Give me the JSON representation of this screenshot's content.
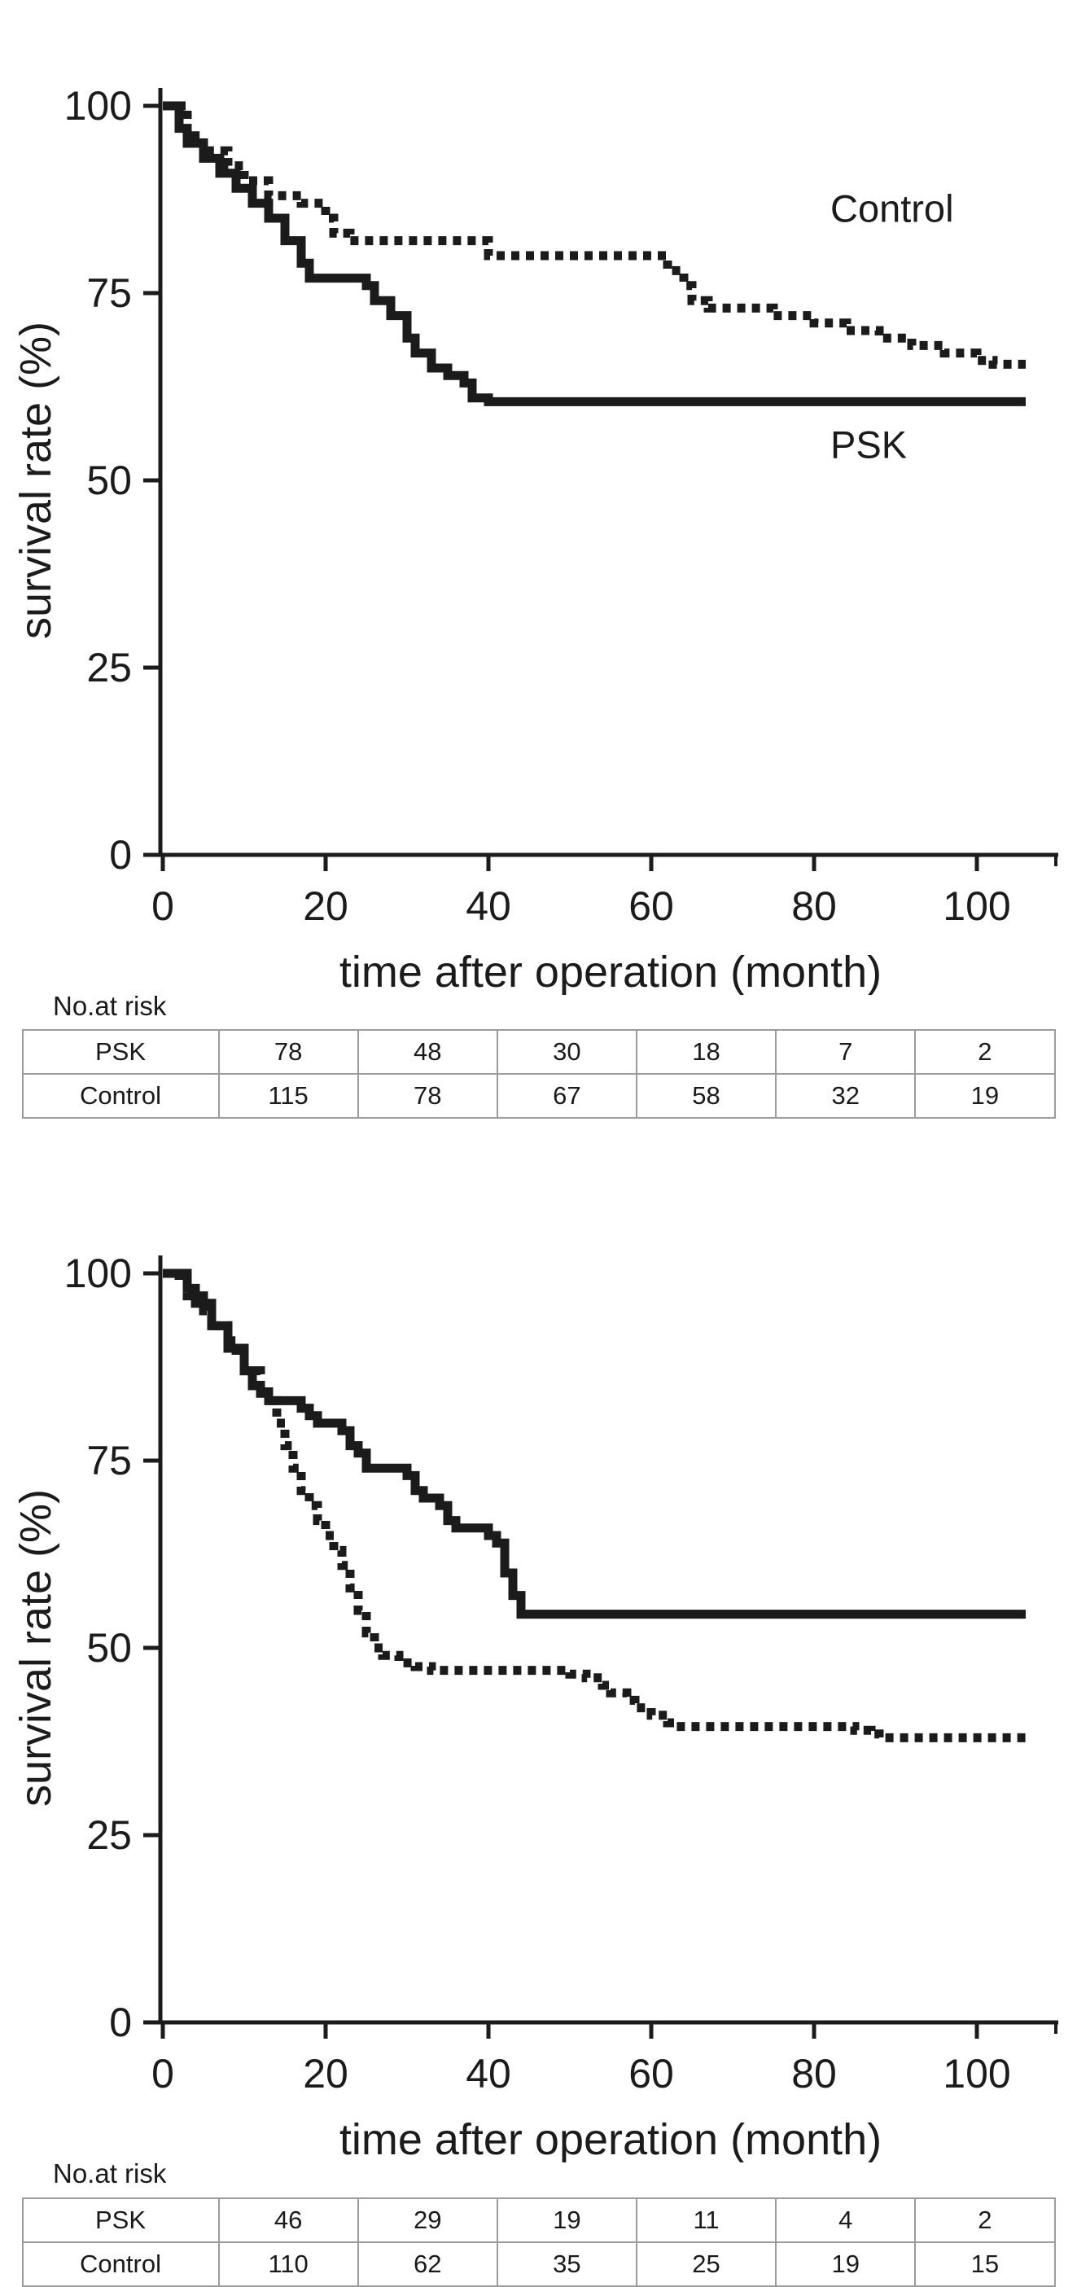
{
  "page": {
    "background": "#ffffff",
    "ink_color": "#1b1b1b",
    "table_border_color": "#9c9c9c"
  },
  "chart_data": [
    {
      "type": "line",
      "chart_kind": "kaplan-meier-survival-step",
      "title": "",
      "xlabel": "time after operation (month)",
      "ylabel": "survival rate (%)",
      "xlim": [
        0,
        106
      ],
      "ylim": [
        0,
        100
      ],
      "x_ticks": [
        0,
        20,
        40,
        60,
        80,
        100
      ],
      "y_ticks": [
        0,
        25,
        50,
        75,
        100
      ],
      "grid": false,
      "legend_position": "inline-labels",
      "series": [
        {
          "name": "Control",
          "line_style": "dashed",
          "label": "Control",
          "label_x": 82,
          "label_y": 84.5,
          "points": [
            [
              0,
              100
            ],
            [
              3,
              96
            ],
            [
              5,
              94
            ],
            [
              8,
              92
            ],
            [
              10,
              90
            ],
            [
              13,
              88
            ],
            [
              17,
              87
            ],
            [
              20,
              85
            ],
            [
              21,
              83
            ],
            [
              23,
              82
            ],
            [
              40,
              80
            ],
            [
              62,
              78
            ],
            [
              64,
              76
            ],
            [
              65,
              74
            ],
            [
              67,
              73
            ],
            [
              75,
              72
            ],
            [
              80,
              71
            ],
            [
              84,
              70
            ],
            [
              88,
              69
            ],
            [
              92,
              68
            ],
            [
              96,
              67
            ],
            [
              100,
              66
            ],
            [
              102,
              65.5
            ]
          ]
        },
        {
          "name": "PSK",
          "line_style": "solid",
          "label": "PSK",
          "label_x": 82,
          "label_y": 53,
          "points": [
            [
              0,
              100
            ],
            [
              2,
              97
            ],
            [
              3,
              95
            ],
            [
              5,
              93
            ],
            [
              7,
              91
            ],
            [
              9,
              89
            ],
            [
              11,
              87
            ],
            [
              13,
              85
            ],
            [
              15,
              82
            ],
            [
              17,
              79
            ],
            [
              18,
              77
            ],
            [
              25,
              76
            ],
            [
              26,
              74
            ],
            [
              28,
              72
            ],
            [
              30,
              69
            ],
            [
              31,
              67
            ],
            [
              33,
              65
            ],
            [
              35,
              64
            ],
            [
              37,
              63
            ],
            [
              38,
              61
            ],
            [
              40,
              60.5
            ]
          ]
        }
      ],
      "no_at_risk": {
        "label": "No.at risk",
        "time_points": [
          0,
          20,
          40,
          60,
          80,
          100
        ],
        "rows": [
          {
            "name": "PSK",
            "counts": [
              78,
              48,
              30,
              18,
              7,
              2
            ]
          },
          {
            "name": "Control",
            "counts": [
              115,
              78,
              67,
              58,
              32,
              19
            ]
          }
        ]
      }
    },
    {
      "type": "line",
      "chart_kind": "kaplan-meier-survival-step",
      "title": "",
      "xlabel": "time after operation (month)",
      "ylabel": "survival rate (%)",
      "xlim": [
        0,
        106
      ],
      "ylim": [
        0,
        100
      ],
      "x_ticks": [
        0,
        20,
        40,
        60,
        80,
        100
      ],
      "y_ticks": [
        0,
        25,
        50,
        75,
        100
      ],
      "grid": false,
      "legend_position": "none",
      "series": [
        {
          "name": "Control",
          "line_style": "dashed",
          "label": null,
          "points": [
            [
              0,
              100
            ],
            [
              2,
              99
            ],
            [
              3,
              97
            ],
            [
              5,
              95
            ],
            [
              6,
              93
            ],
            [
              8,
              91
            ],
            [
              9,
              89
            ],
            [
              10,
              87
            ],
            [
              12,
              85
            ],
            [
              13,
              83
            ],
            [
              14,
              80
            ],
            [
              15,
              77
            ],
            [
              16,
              74
            ],
            [
              17,
              71
            ],
            [
              18,
              69
            ],
            [
              19,
              67
            ],
            [
              20,
              65
            ],
            [
              21,
              63
            ],
            [
              22,
              61
            ],
            [
              23,
              58
            ],
            [
              24,
              55
            ],
            [
              25,
              52
            ],
            [
              26,
              50
            ],
            [
              27,
              49
            ],
            [
              29,
              48
            ],
            [
              31,
              47.5
            ],
            [
              33,
              47
            ],
            [
              50,
              46.5
            ],
            [
              52,
              46
            ],
            [
              54,
              45
            ],
            [
              55,
              44
            ],
            [
              57,
              43
            ],
            [
              58,
              42
            ],
            [
              60,
              41
            ],
            [
              62,
              40
            ],
            [
              63,
              39.5
            ],
            [
              85,
              39
            ],
            [
              87,
              38.5
            ],
            [
              88,
              38
            ]
          ]
        },
        {
          "name": "PSK",
          "line_style": "solid",
          "label": null,
          "points": [
            [
              0,
              100
            ],
            [
              3,
              98
            ],
            [
              4,
              96
            ],
            [
              6,
              93
            ],
            [
              8,
              90
            ],
            [
              10,
              87
            ],
            [
              11,
              85
            ],
            [
              12,
              84
            ],
            [
              13,
              83
            ],
            [
              17,
              82
            ],
            [
              18,
              81
            ],
            [
              19,
              80
            ],
            [
              22,
              79
            ],
            [
              23,
              77
            ],
            [
              24,
              76
            ],
            [
              25,
              74
            ],
            [
              30,
              73
            ],
            [
              31,
              71
            ],
            [
              32,
              70
            ],
            [
              34,
              69
            ],
            [
              35,
              67
            ],
            [
              36,
              66
            ],
            [
              40,
              65
            ],
            [
              41,
              64
            ],
            [
              42,
              60
            ],
            [
              43,
              57
            ],
            [
              44,
              54.5
            ]
          ]
        }
      ],
      "no_at_risk": {
        "label": "No.at risk",
        "time_points": [
          0,
          20,
          40,
          60,
          80,
          100
        ],
        "rows": [
          {
            "name": "PSK",
            "counts": [
              46,
              29,
              19,
              11,
              4,
              2
            ]
          },
          {
            "name": "Control",
            "counts": [
              110,
              62,
              35,
              25,
              19,
              15
            ]
          }
        ]
      }
    }
  ]
}
